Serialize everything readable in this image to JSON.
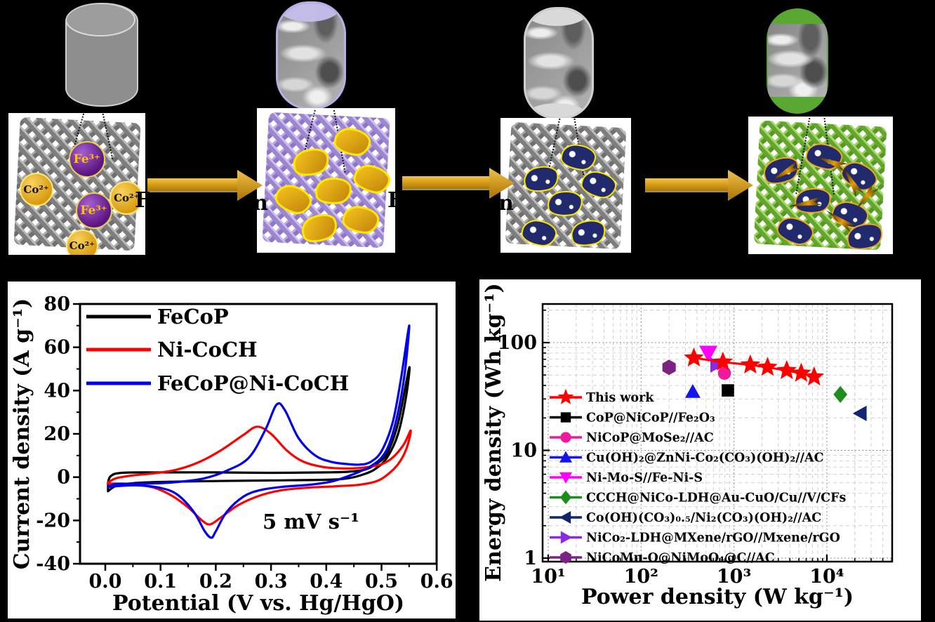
{
  "figure": {
    "background": "#000000"
  },
  "top_row": {
    "cylinders": [
      {
        "name": "bare-substrate-cylinder",
        "style": "plain-gray"
      },
      {
        "name": "stage2-sem-cylinder",
        "style": "sem-lavender"
      },
      {
        "name": "stage3-sem-cylinder",
        "style": "sem-gray"
      },
      {
        "name": "stage4-sem-cylinder",
        "style": "sem-green"
      }
    ],
    "panels": [
      {
        "name": "substrate-with-ions",
        "mesh_color": "gray",
        "ions": [
          {
            "label": "Fe³⁺",
            "type": "fe"
          },
          {
            "label": "Fe³⁺",
            "type": "fe"
          },
          {
            "label": "Co²⁺",
            "type": "co"
          },
          {
            "label": "Co²⁺",
            "type": "co"
          },
          {
            "label": "Co²⁺",
            "type": "co"
          }
        ]
      },
      {
        "name": "purple-mesh-gold-nanosheets",
        "mesh_color": "purple"
      },
      {
        "name": "gray-mesh-navy-nanosheets",
        "mesh_color": "gray"
      },
      {
        "name": "green-mesh-navy-nanosheets-spikes",
        "mesh_color": "green"
      }
    ],
    "arrow_label_fragments": [
      {
        "left": "F",
        "right": "n"
      },
      {
        "left": "F",
        "right": "n"
      },
      {
        "left": "",
        "right": ""
      }
    ]
  },
  "chart_data": [
    {
      "type": "line",
      "title": "",
      "xlabel": "Potential (V vs. Hg/HgO)",
      "ylabel": "Current density (A g⁻¹)",
      "annotation": "5 mV s⁻¹",
      "xlim": [
        -0.046,
        0.602
      ],
      "ylim": [
        -40,
        80
      ],
      "xticks": [
        0.0,
        0.1,
        0.2,
        0.3,
        0.4,
        0.5,
        0.6
      ],
      "xtick_labels": [
        "0.0",
        "0.1",
        "0.2",
        "0.3",
        "0.4",
        "0.5",
        "0.6"
      ],
      "yticks": [
        -40,
        -20,
        0,
        20,
        40,
        60,
        80
      ],
      "ytick_labels": [
        "-40",
        "-20",
        "0",
        "20",
        "40",
        "60",
        "80"
      ],
      "grid": false,
      "legend_position": "upper-left",
      "series": [
        {
          "name": "FeCoP",
          "color": "#000000",
          "points": [
            [
              0.005,
              -2.5
            ],
            [
              0.01,
              0.5
            ],
            [
              0.03,
              2
            ],
            [
              0.1,
              2.2
            ],
            [
              0.2,
              2.2
            ],
            [
              0.3,
              2
            ],
            [
              0.4,
              2.2
            ],
            [
              0.44,
              2.5
            ],
            [
              0.47,
              3.5
            ],
            [
              0.49,
              6
            ],
            [
              0.51,
              11
            ],
            [
              0.53,
              25
            ],
            [
              0.55,
              50.5
            ],
            [
              0.545,
              38
            ],
            [
              0.53,
              20
            ],
            [
              0.51,
              9
            ],
            [
              0.49,
              4
            ],
            [
              0.47,
              1.5
            ],
            [
              0.44,
              -0.5
            ],
            [
              0.4,
              -1.2
            ],
            [
              0.3,
              -1.5
            ],
            [
              0.2,
              -1.8
            ],
            [
              0.1,
              -2.2
            ],
            [
              0.05,
              -2.8
            ],
            [
              0.02,
              -4
            ],
            [
              0.005,
              -6.5
            ]
          ]
        },
        {
          "name": "Ni-CoCH",
          "color": "#ff0000",
          "points": [
            [
              0.005,
              -2.5
            ],
            [
              0.02,
              -0.5
            ],
            [
              0.05,
              0.8
            ],
            [
              0.09,
              1.8
            ],
            [
              0.13,
              3.5
            ],
            [
              0.17,
              7
            ],
            [
              0.21,
              12.5
            ],
            [
              0.25,
              19.5
            ],
            [
              0.275,
              23.3
            ],
            [
              0.3,
              20
            ],
            [
              0.33,
              12
            ],
            [
              0.36,
              7
            ],
            [
              0.4,
              4.5
            ],
            [
              0.44,
              4
            ],
            [
              0.47,
              4.5
            ],
            [
              0.5,
              6
            ],
            [
              0.52,
              9
            ],
            [
              0.54,
              15
            ],
            [
              0.553,
              21.5
            ],
            [
              0.545,
              13
            ],
            [
              0.53,
              6
            ],
            [
              0.51,
              1
            ],
            [
              0.49,
              -2
            ],
            [
              0.46,
              -3.5
            ],
            [
              0.42,
              -4.2
            ],
            [
              0.37,
              -4.8
            ],
            [
              0.32,
              -6
            ],
            [
              0.28,
              -8.5
            ],
            [
              0.24,
              -13
            ],
            [
              0.21,
              -18.5
            ],
            [
              0.19,
              -21.8
            ],
            [
              0.175,
              -20
            ],
            [
              0.15,
              -14
            ],
            [
              0.12,
              -8.5
            ],
            [
              0.09,
              -5
            ],
            [
              0.06,
              -3.5
            ],
            [
              0.03,
              -3
            ],
            [
              0.005,
              -3
            ]
          ]
        },
        {
          "name": "FeCoP@Ni-CoCH",
          "color": "#0000ee",
          "points": [
            [
              0.005,
              -4.5
            ],
            [
              0.02,
              -3.2
            ],
            [
              0.06,
              -3
            ],
            [
              0.1,
              -2.8
            ],
            [
              0.14,
              -2
            ],
            [
              0.18,
              -0.5
            ],
            [
              0.22,
              3
            ],
            [
              0.26,
              9
            ],
            [
              0.29,
              22
            ],
            [
              0.31,
              33.5
            ],
            [
              0.325,
              31
            ],
            [
              0.35,
              18
            ],
            [
              0.38,
              10
            ],
            [
              0.41,
              7
            ],
            [
              0.44,
              6
            ],
            [
              0.46,
              5.8
            ],
            [
              0.48,
              7
            ],
            [
              0.5,
              12
            ],
            [
              0.52,
              25
            ],
            [
              0.535,
              45
            ],
            [
              0.55,
              70
            ],
            [
              0.542,
              48
            ],
            [
              0.53,
              30
            ],
            [
              0.515,
              16
            ],
            [
              0.5,
              9
            ],
            [
              0.48,
              5
            ],
            [
              0.46,
              2.5
            ],
            [
              0.44,
              0.5
            ],
            [
              0.41,
              -2
            ],
            [
              0.37,
              -3.5
            ],
            [
              0.32,
              -4.5
            ],
            [
              0.28,
              -6
            ],
            [
              0.25,
              -9
            ],
            [
              0.22,
              -16
            ],
            [
              0.2,
              -25
            ],
            [
              0.192,
              -28
            ],
            [
              0.18,
              -25
            ],
            [
              0.16,
              -16
            ],
            [
              0.13,
              -8
            ],
            [
              0.1,
              -5
            ],
            [
              0.06,
              -3.8
            ],
            [
              0.03,
              -4
            ],
            [
              0.005,
              -4.5
            ]
          ]
        }
      ]
    },
    {
      "type": "scatter",
      "title": "",
      "xlabel": "Power density (W kg⁻¹)",
      "ylabel": "Energy density (Wh kg⁻¹)",
      "xscale": "log",
      "yscale": "log",
      "xlim": [
        10,
        50000
      ],
      "ylim": [
        0.93,
        224
      ],
      "xticks": [
        10,
        100,
        1000,
        10000
      ],
      "xtick_labels": [
        "10¹",
        "10²",
        "10³",
        "10⁴"
      ],
      "yticks": [
        1,
        10,
        100
      ],
      "ytick_labels": [
        "1",
        "10",
        "100"
      ],
      "grid": true,
      "legend_position": "left",
      "series": [
        {
          "name": "This work",
          "marker": "star",
          "color": "#ff0000",
          "line": true,
          "points": [
            [
              370,
              72
            ],
            [
              760,
              66
            ],
            [
              1500,
              62
            ],
            [
              2300,
              59
            ],
            [
              3700,
              55
            ],
            [
              5300,
              52
            ],
            [
              7300,
              48
            ]
          ]
        },
        {
          "name": "CoP@NiCoP//Fe₂O₃",
          "marker": "square",
          "color": "#000000",
          "points": [
            [
              860,
              36
            ]
          ]
        },
        {
          "name": "NiCoP@MoSe₂//AC",
          "marker": "circle",
          "color": "#f0189c",
          "points": [
            [
              790,
              52
            ]
          ]
        },
        {
          "name": "Cu(OH)₂@ZnNi-Co₂(CO₃)(OH)₂//AC",
          "marker": "triangle-up",
          "color": "#1414f0",
          "points": [
            [
              360,
              35
            ]
          ]
        },
        {
          "name": "Ni-Mo-S//Fe-Ni-S",
          "marker": "triangle-down",
          "color": "#ff00ff",
          "points": [
            [
              530,
              80
            ]
          ]
        },
        {
          "name": "CCCH@NiCo-LDH@Au-CuO/Cu//V/CFs",
          "marker": "diamond",
          "color": "#1e8c1e",
          "points": [
            [
              14000,
              33
            ]
          ]
        },
        {
          "name": "Co(OH)(CO₃)₀.₅/Ni₂(CO₃)(OH)₂//AC",
          "marker": "triangle-left",
          "color": "#14246e",
          "points": [
            [
              23000,
              22
            ]
          ]
        },
        {
          "name": "NiCo₂-LDH@MXene/rGO//Mxene/rGO",
          "marker": "triangle-right",
          "color": "#8a2be2",
          "points": [
            [
              650,
              62
            ]
          ]
        },
        {
          "name": "NiCoMn-O@NiMoO₄@C//AC",
          "marker": "hexagon",
          "color": "#7b2382",
          "points": [
            [
              200,
              59
            ]
          ]
        }
      ]
    }
  ]
}
